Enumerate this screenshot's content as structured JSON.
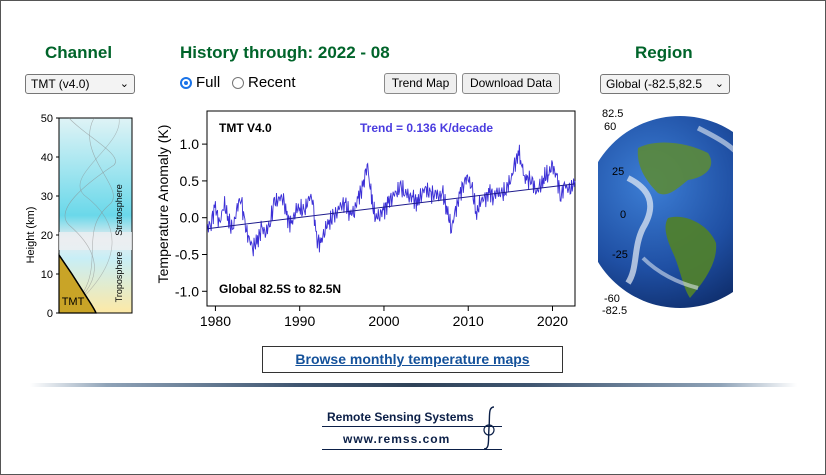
{
  "channel": {
    "heading": "Channel",
    "selected": "TMT (v4.0)",
    "profile": {
      "ylabel": "Height  (km)",
      "ticks": [
        "0",
        "10",
        "20",
        "30",
        "40",
        "50"
      ],
      "label_stratosphere": "Stratosphere",
      "label_troposphere": "Troposphere",
      "label_channel": "TMT"
    }
  },
  "history": {
    "heading": "History through: 2022 - 08",
    "radio_full": "Full",
    "radio_recent": "Recent",
    "selected_range": "Full",
    "btn_trend_map": "Trend Map",
    "btn_download": "Download Data"
  },
  "region": {
    "heading": "Region",
    "selected": "Global (-82.5,82.5",
    "globe_labels": [
      "82.5",
      "60",
      "25",
      "0",
      "-25",
      "-60",
      "-82.5"
    ]
  },
  "chart_data": {
    "type": "line",
    "title": "TMT V4.0",
    "trend_label": "Trend =  0.136 K/decade",
    "region_label": "Global  82.5S to  82.5N",
    "ylabel": "Temperature Anomaly (K)",
    "xlabel": "",
    "xlim": [
      1979,
      2022.67
    ],
    "ylim": [
      -1.2,
      1.45
    ],
    "xticks": [
      "1980",
      "1990",
      "2000",
      "2010",
      "2020"
    ],
    "yticks": [
      "-1.0",
      "-0.5",
      "0.0",
      "0.5",
      "1.0"
    ],
    "trend_line": {
      "x": [
        1979,
        2022.67
      ],
      "y": [
        -0.15,
        0.46
      ]
    },
    "series": [
      {
        "x": [
          1979.0,
          1979.5,
          1980.0,
          1980.5,
          1981.0,
          1981.5,
          1982.0,
          1982.5,
          1983.0,
          1983.5,
          1984.0,
          1984.5,
          1985.0,
          1985.5,
          1986.0,
          1986.5,
          1987.0,
          1987.5,
          1988.0,
          1988.5,
          1989.0,
          1989.5,
          1990.0,
          1990.5,
          1991.0,
          1991.5,
          1992.0,
          1992.5,
          1993.0,
          1993.5,
          1994.0,
          1994.5,
          1995.0,
          1995.5,
          1996.0,
          1996.5,
          1997.0,
          1997.5,
          1998.0,
          1998.3,
          1998.6,
          1999.0,
          1999.5,
          2000.0,
          2000.5,
          2001.0,
          2001.5,
          2002.0,
          2002.5,
          2003.0,
          2003.5,
          2004.0,
          2004.5,
          2005.0,
          2005.5,
          2006.0,
          2006.5,
          2007.0,
          2007.5,
          2008.0,
          2008.5,
          2009.0,
          2009.5,
          2010.0,
          2010.5,
          2011.0,
          2011.5,
          2012.0,
          2012.5,
          2013.0,
          2013.5,
          2014.0,
          2014.5,
          2015.0,
          2015.5,
          2016.0,
          2016.3,
          2016.7,
          2017.0,
          2017.5,
          2018.0,
          2018.5,
          2019.0,
          2019.5,
          2020.0,
          2020.5,
          2021.0,
          2021.5,
          2022.0,
          2022.67
        ],
        "y": [
          -0.15,
          -0.05,
          0.15,
          -0.1,
          0.2,
          0.0,
          -0.2,
          0.1,
          0.3,
          -0.1,
          -0.3,
          -0.4,
          -0.3,
          -0.15,
          -0.2,
          -0.05,
          0.2,
          0.25,
          0.3,
          0.0,
          -0.1,
          0.1,
          0.15,
          0.05,
          0.25,
          0.3,
          -0.3,
          -0.35,
          -0.15,
          -0.05,
          0.0,
          0.1,
          0.2,
          0.15,
          0.05,
          0.1,
          0.3,
          0.4,
          0.75,
          0.5,
          0.2,
          0.0,
          0.05,
          0.1,
          0.2,
          0.3,
          0.35,
          0.4,
          0.35,
          0.3,
          0.25,
          0.2,
          0.35,
          0.4,
          0.3,
          0.35,
          0.3,
          0.3,
          0.1,
          -0.15,
          0.1,
          0.3,
          0.5,
          0.55,
          0.35,
          0.05,
          0.25,
          0.25,
          0.35,
          0.3,
          0.35,
          0.3,
          0.4,
          0.5,
          0.7,
          0.9,
          0.75,
          0.55,
          0.5,
          0.55,
          0.35,
          0.4,
          0.55,
          0.6,
          0.7,
          0.55,
          0.3,
          0.45,
          0.35,
          0.5
        ]
      }
    ]
  }
}
